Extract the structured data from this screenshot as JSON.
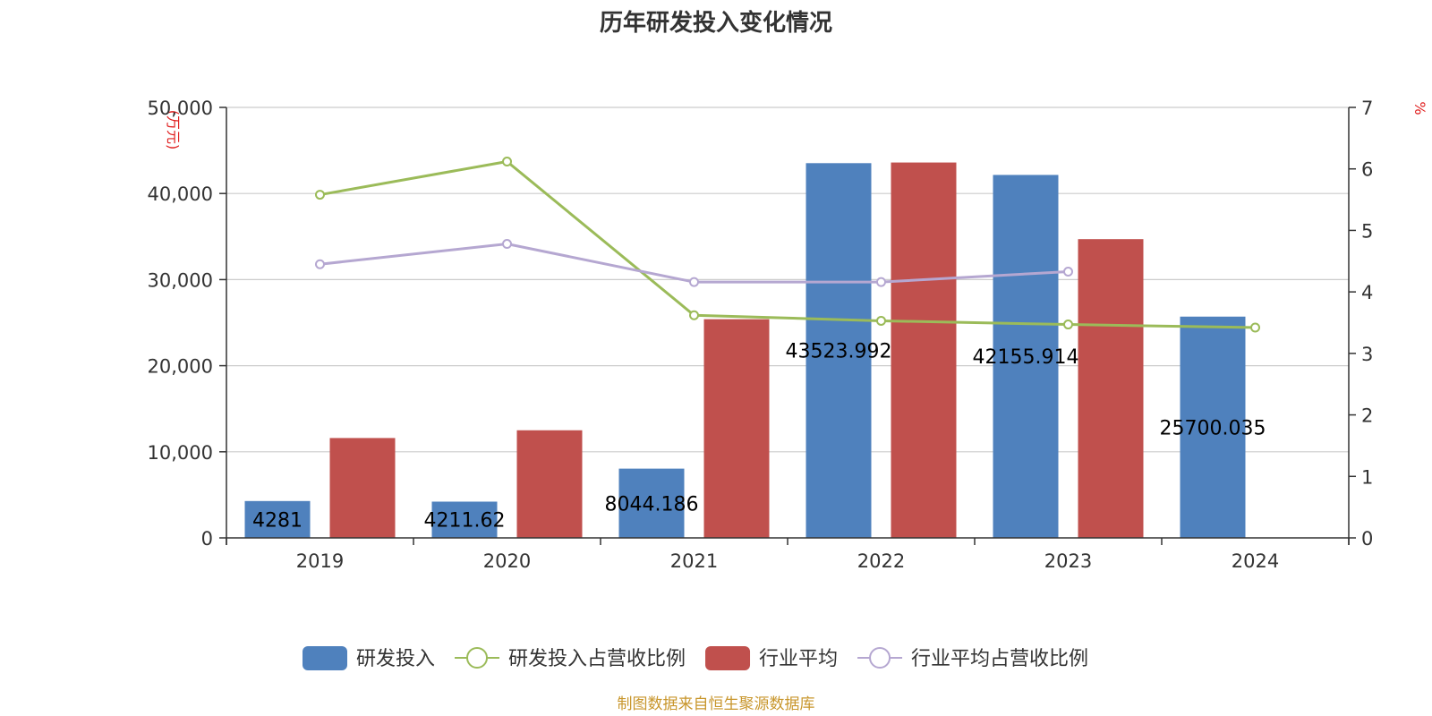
{
  "chart_data": {
    "type": "bar",
    "title": "历年研发投入变化情况",
    "categories": [
      "2019",
      "2020",
      "2021",
      "2022",
      "2023",
      "2024"
    ],
    "y_left": {
      "unit": "(万元)",
      "ylim": [
        0,
        50000
      ],
      "ticks": [
        0,
        10000,
        20000,
        30000,
        40000,
        50000
      ],
      "tick_labels": [
        "0",
        "10,000",
        "20,000",
        "30,000",
        "40,000",
        "50,000"
      ]
    },
    "y_right": {
      "unit": "%",
      "ylim": [
        0,
        7
      ],
      "ticks": [
        0,
        1,
        2,
        3,
        4,
        5,
        6,
        7
      ],
      "tick_labels": [
        "0",
        "1",
        "2",
        "3",
        "4",
        "5",
        "6",
        "7"
      ]
    },
    "series": [
      {
        "name": "研发投入",
        "kind": "bar",
        "axis": "left",
        "color": "#4f81bd",
        "values": [
          4281,
          4211.62,
          8044.186,
          43523.992,
          42155.914,
          25700.035
        ],
        "labels": [
          "4281",
          "4211.62",
          "8044.186",
          "43523.992",
          "42155.914",
          "25700.035"
        ]
      },
      {
        "name": "研发投入占营收比例",
        "kind": "line",
        "axis": "right",
        "color": "#9bbb59",
        "values": [
          5.58,
          6.12,
          3.62,
          3.53,
          3.47,
          3.42
        ]
      },
      {
        "name": "行业平均",
        "kind": "bar",
        "axis": "left",
        "color": "#c0504d",
        "values": [
          11600,
          12500,
          25400,
          43600,
          34700,
          null
        ]
      },
      {
        "name": "行业平均占营收比例",
        "kind": "line",
        "axis": "right",
        "color": "#b5a7d1",
        "values": [
          4.45,
          4.78,
          4.16,
          4.16,
          4.33,
          null
        ]
      }
    ],
    "legend_position": "bottom",
    "grid": true,
    "source": "制图数据来自恒生聚源数据库"
  }
}
